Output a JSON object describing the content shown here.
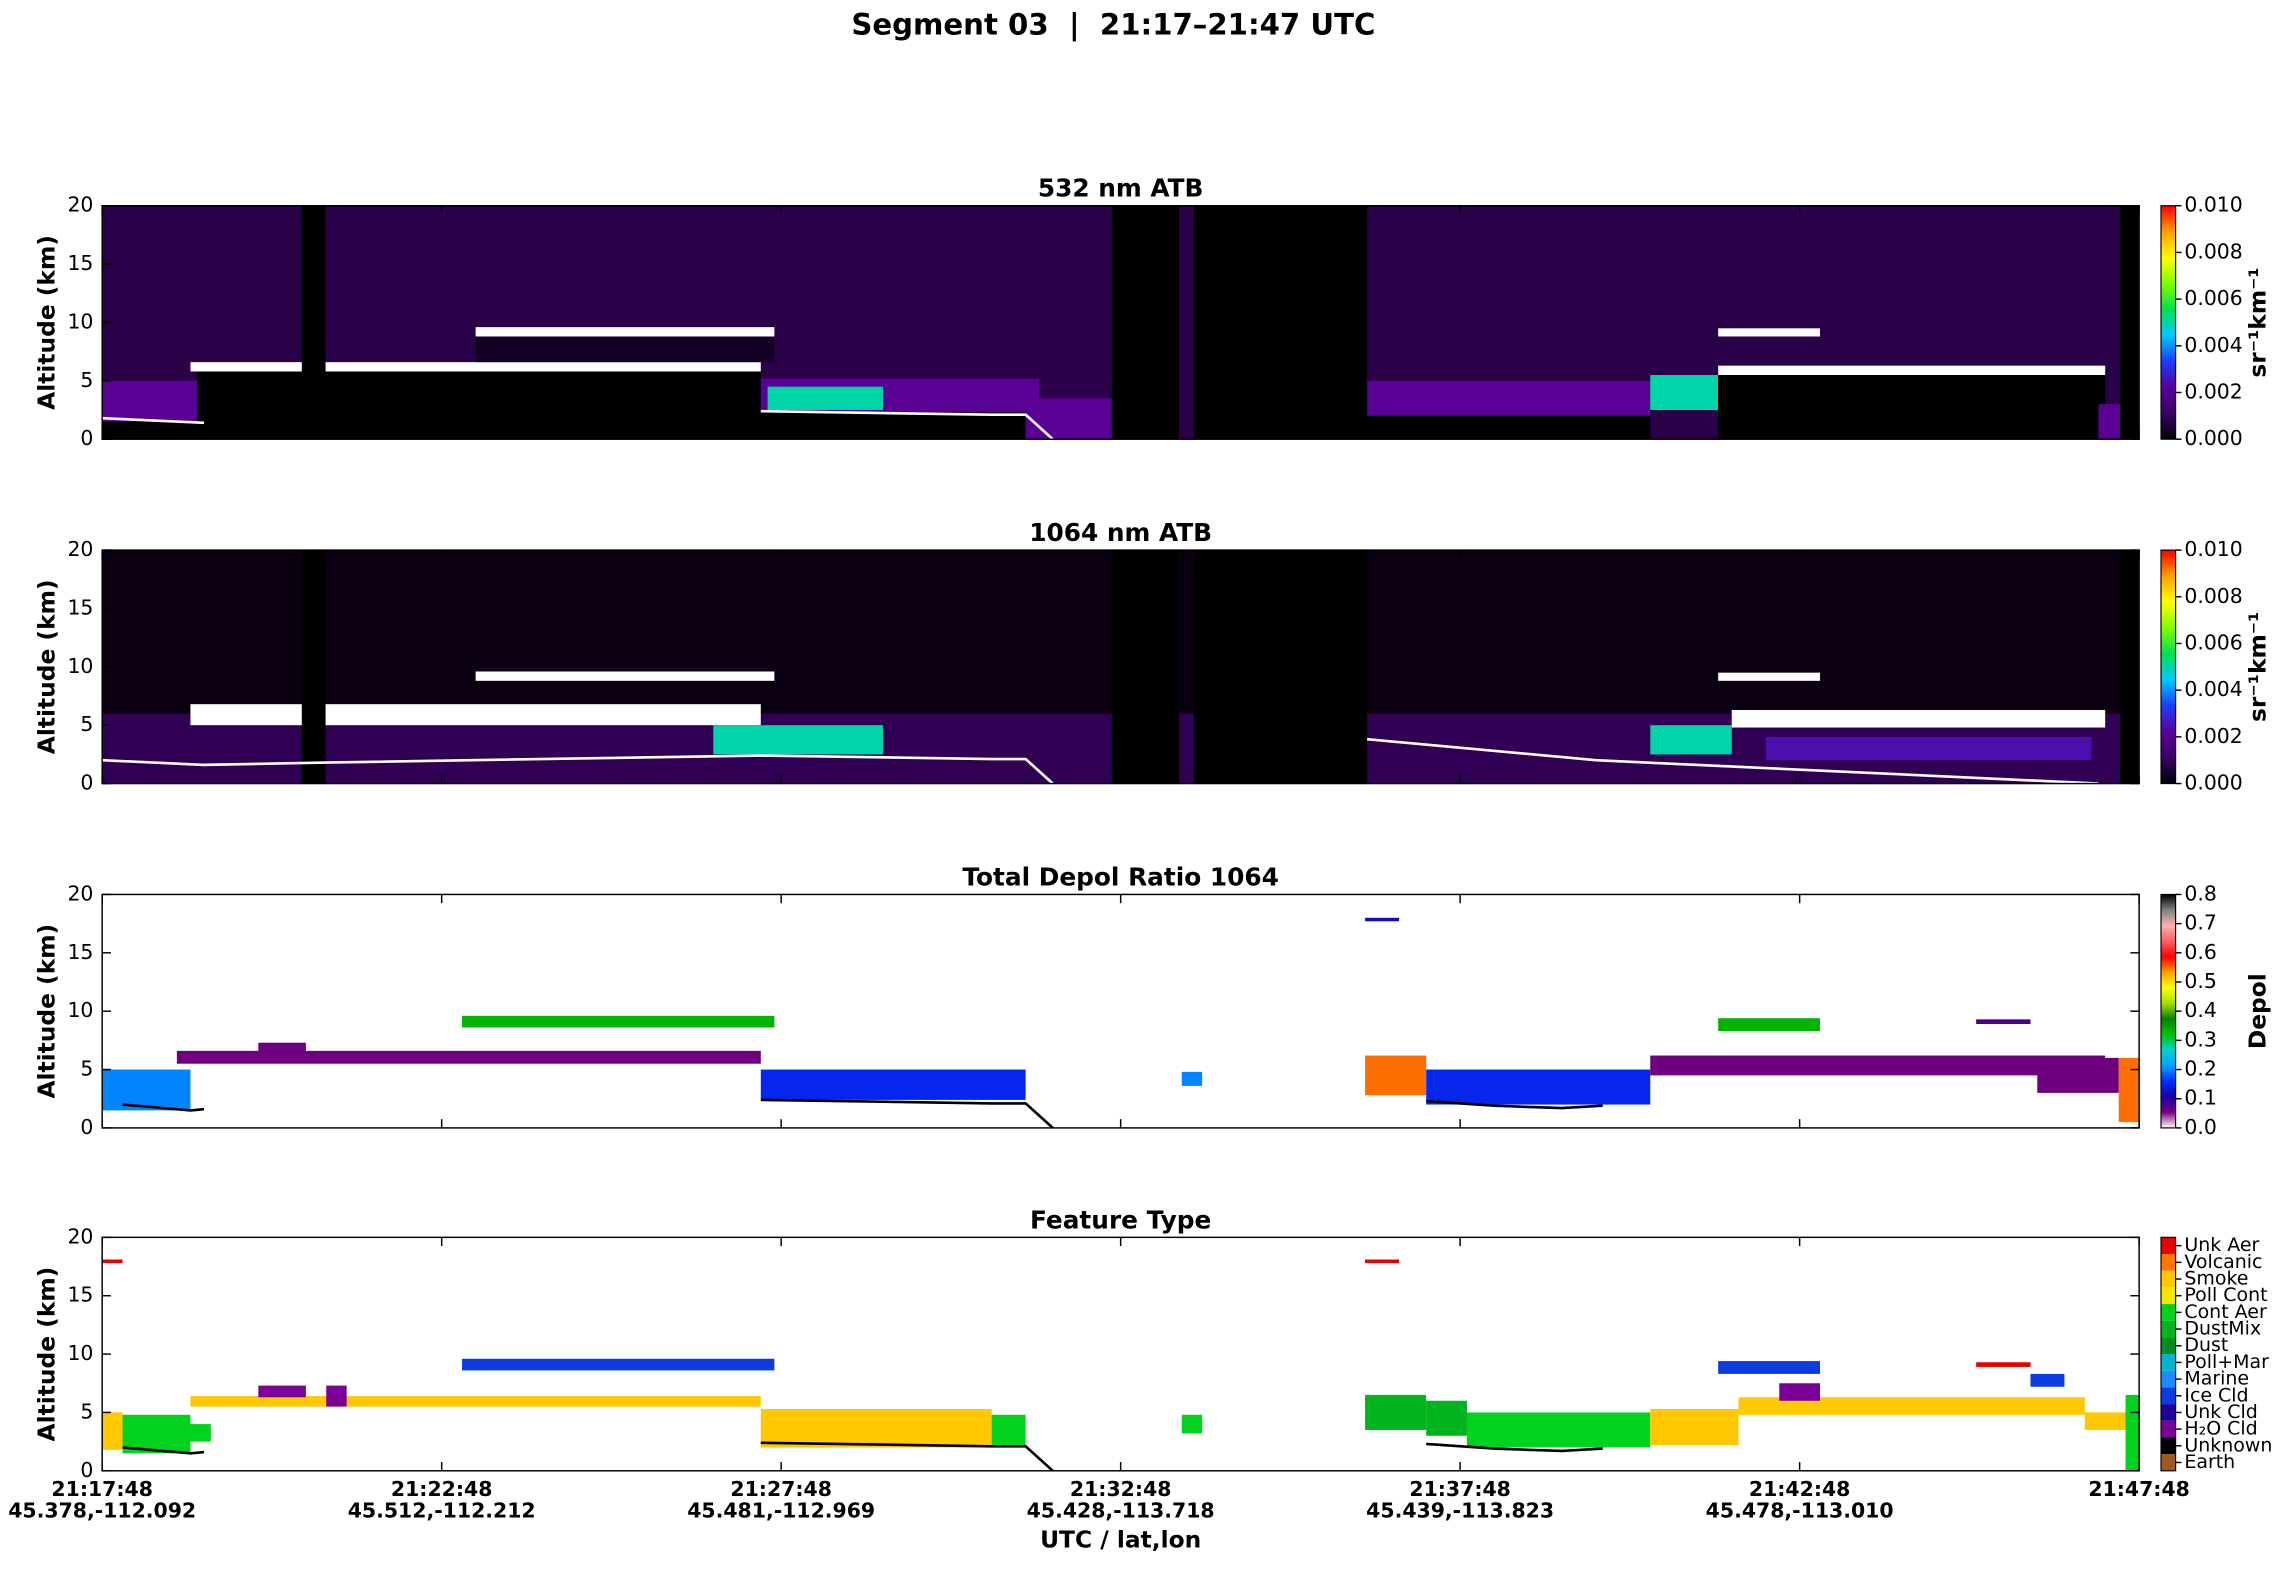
{
  "title": "Segment 03  |  21:17–21:47 UTC",
  "xlabel": "UTC / lat,lon",
  "xlim": [
    0,
    30
  ],
  "xticks": [
    {
      "value": 0,
      "label": "21:17:48"
    },
    {
      "value": 5,
      "label": "21:22:48"
    },
    {
      "value": 10,
      "label": "21:27:48"
    },
    {
      "value": 15,
      "label": "21:32:48"
    },
    {
      "value": 20,
      "label": "21:37:48"
    },
    {
      "value": 25,
      "label": "21:42:48"
    },
    {
      "value": 30,
      "label": "21:47:48"
    }
  ],
  "xtick_coords": [
    "45.378,-112.092",
    "45.512,-112.212",
    "45.481,-112.969",
    "45.428,-113.718",
    "45.439,-113.823",
    "45.478,-113.010",
    ""
  ],
  "chart_data": [
    {
      "type": "heatmap",
      "title": "532 nm ATB",
      "ylabel": "Altitude (km)",
      "ylim": [
        0,
        20
      ],
      "yticks": [
        0,
        5,
        10,
        15,
        20
      ],
      "colorbar": {
        "label": "sr⁻¹km⁻¹",
        "lim": [
          0,
          0.01
        ],
        "ticks": [
          {
            "value": 0,
            "label": "0.000"
          },
          {
            "value": 0.002,
            "label": "0.002"
          },
          {
            "value": 0.004,
            "label": "0.004"
          },
          {
            "value": 0.006,
            "label": "0.006"
          },
          {
            "value": 0.008,
            "label": "0.008"
          },
          {
            "value": 0.01,
            "label": "0.010"
          }
        ],
        "colormap": [
          "#000000",
          "#3a0066",
          "#5a0096",
          "#1e3cff",
          "#00c8ff",
          "#00e050",
          "#7fff00",
          "#ffff00",
          "#ffa000",
          "#ff0000"
        ],
        "over_color": "#ffffff"
      },
      "background": 0.0008,
      "layers": [
        {
          "x": [
            0,
            1.4
          ],
          "y": [
            1.5,
            5
          ],
          "value": 0.0022
        },
        {
          "x": [
            0,
            1.4
          ],
          "y": [
            0,
            1.5
          ],
          "value": 0
        },
        {
          "x": [
            1.4,
            9.7
          ],
          "y": [
            0,
            6
          ],
          "value": 0
        },
        {
          "x": [
            1.3,
            9.7
          ],
          "y": [
            5.8,
            6.6
          ],
          "value": 0.012
        },
        {
          "x": [
            5.5,
            9.9
          ],
          "y": [
            6.6,
            8.8
          ],
          "value": 0.0004
        },
        {
          "x": [
            5.5,
            9.9
          ],
          "y": [
            8.8,
            9.6
          ],
          "value": 0.012
        },
        {
          "x": [
            9.7,
            13.8
          ],
          "y": [
            2.2,
            5.2
          ],
          "value": 0.0022
        },
        {
          "x": [
            9.8,
            11.5
          ],
          "y": [
            2.5,
            4.5
          ],
          "value": 0.005
        },
        {
          "x": [
            9.7,
            13.6
          ],
          "y": [
            0,
            2.3
          ],
          "value": 0
        },
        {
          "x": [
            13.6,
            14.9
          ],
          "y": [
            0,
            3.5
          ],
          "value": 0.0022
        },
        {
          "x": [
            2.94,
            3.29
          ],
          "y": [
            0,
            20
          ],
          "value": 0
        },
        {
          "x": [
            14.87,
            15.86
          ],
          "y": [
            0,
            20
          ],
          "value": 0
        },
        {
          "x": [
            16.08,
            18.63
          ],
          "y": [
            0,
            20
          ],
          "value": 0
        },
        {
          "x": [
            18.63,
            22.8
          ],
          "y": [
            2,
            5
          ],
          "value": 0.0022
        },
        {
          "x": [
            18.63,
            22.8
          ],
          "y": [
            0,
            2
          ],
          "value": 0
        },
        {
          "x": [
            22.8,
            23.8
          ],
          "y": [
            2.5,
            5.5
          ],
          "value": 0.005
        },
        {
          "x": [
            23.8,
            29.5
          ],
          "y": [
            0,
            5.8
          ],
          "value": 0
        },
        {
          "x": [
            23.8,
            29.5
          ],
          "y": [
            5.5,
            6.3
          ],
          "value": 0.012
        },
        {
          "x": [
            23.8,
            25.3
          ],
          "y": [
            8.8,
            9.5
          ],
          "value": 0.012
        },
        {
          "x": [
            29.4,
            29.72
          ],
          "y": [
            0,
            3
          ],
          "value": 0.0022
        },
        {
          "x": [
            29.72,
            30
          ],
          "y": [
            0,
            20
          ],
          "value": 0
        }
      ],
      "surface": {
        "x": [
          0,
          1.5,
          null,
          9.7,
          13.1,
          13.6,
          14.0
        ],
        "y": [
          1.8,
          1.4,
          null,
          2.4,
          2.1,
          2.1,
          0
        ],
        "color": "#ffffff"
      }
    },
    {
      "type": "heatmap",
      "title": "1064 nm ATB",
      "ylabel": "Altitude (km)",
      "ylim": [
        0,
        20
      ],
      "yticks": [
        0,
        5,
        10,
        15,
        20
      ],
      "colorbar": {
        "label": "sr⁻¹km⁻¹",
        "lim": [
          0,
          0.01
        ],
        "ticks": [
          {
            "value": 0,
            "label": "0.000"
          },
          {
            "value": 0.002,
            "label": "0.002"
          },
          {
            "value": 0.004,
            "label": "0.004"
          },
          {
            "value": 0.006,
            "label": "0.006"
          },
          {
            "value": 0.008,
            "label": "0.008"
          },
          {
            "value": 0.01,
            "label": "0.010"
          }
        ],
        "colormap": [
          "#000000",
          "#3a0066",
          "#5a0096",
          "#1e3cff",
          "#00c8ff",
          "#00e050",
          "#7fff00",
          "#ffff00",
          "#ffa000",
          "#ff0000"
        ],
        "over_color": "#ffffff"
      },
      "background": 0.0002,
      "layers": [
        {
          "x": [
            0,
            30
          ],
          "y": [
            0,
            6
          ],
          "value": 0.0009
        },
        {
          "x": [
            1.3,
            9.7
          ],
          "y": [
            5.0,
            6.8
          ],
          "value": 0.012
        },
        {
          "x": [
            5.5,
            9.9
          ],
          "y": [
            8.8,
            9.6
          ],
          "value": 0.012
        },
        {
          "x": [
            9.0,
            11.5
          ],
          "y": [
            2.5,
            5.0
          ],
          "value": 0.005
        },
        {
          "x": [
            2.94,
            3.29
          ],
          "y": [
            0,
            20
          ],
          "value": 0
        },
        {
          "x": [
            14.87,
            15.86
          ],
          "y": [
            0,
            20
          ],
          "value": 0
        },
        {
          "x": [
            16.08,
            18.63
          ],
          "y": [
            0,
            20
          ],
          "value": 0
        },
        {
          "x": [
            22.8,
            24.0
          ],
          "y": [
            2.5,
            5.0
          ],
          "value": 0.005
        },
        {
          "x": [
            24.0,
            29.5
          ],
          "y": [
            4.8,
            6.3
          ],
          "value": 0.012
        },
        {
          "x": [
            24.5,
            29.3
          ],
          "y": [
            2.0,
            4.0
          ],
          "value": 0.0025
        },
        {
          "x": [
            23.8,
            25.3
          ],
          "y": [
            8.8,
            9.5
          ],
          "value": 0.012
        },
        {
          "x": [
            29.72,
            30
          ],
          "y": [
            0,
            20
          ],
          "value": 0
        }
      ],
      "surface": {
        "x": [
          0,
          1.5,
          3.3,
          9.7,
          13.1,
          13.6,
          14.0,
          null,
          18.63,
          22.0,
          29.4
        ],
        "y": [
          2.0,
          1.6,
          1.8,
          2.4,
          2.1,
          2.1,
          0,
          null,
          3.8,
          2.0,
          0
        ],
        "color": "#ffffff"
      }
    },
    {
      "type": "heatmap",
      "title": "Total Depol Ratio 1064",
      "ylabel": "Altitude (km)",
      "ylim": [
        0,
        20
      ],
      "yticks": [
        0,
        5,
        10,
        15,
        20
      ],
      "colorbar": {
        "label": "Depol",
        "lim": [
          0,
          0.8
        ],
        "ticks": [
          {
            "value": 0,
            "label": "0.0"
          },
          {
            "value": 0.1,
            "label": "0.1"
          },
          {
            "value": 0.2,
            "label": "0.2"
          },
          {
            "value": 0.3,
            "label": "0.3"
          },
          {
            "value": 0.4,
            "label": "0.4"
          },
          {
            "value": 0.5,
            "label": "0.5"
          },
          {
            "value": 0.6,
            "label": "0.6"
          },
          {
            "value": 0.7,
            "label": "0.7"
          },
          {
            "value": 0.8,
            "label": "0.8"
          }
        ],
        "colormap": [
          "#ffffff",
          "#7a007a",
          "#1a00a0",
          "#0030ff",
          "#00a0ff",
          "#00d0d0",
          "#00c000",
          "#008000",
          "#a0e000",
          "#ffff00",
          "#ffa000",
          "#ff0000",
          "#ff6060",
          "#ffb0b0",
          "#808080",
          "#000000"
        ],
        "over_color": "#000000"
      },
      "background": null,
      "layers": [
        {
          "x": [
            0,
            1.3
          ],
          "y": [
            1.5,
            5
          ],
          "value": 0.2
        },
        {
          "x": [
            1.1,
            9.7
          ],
          "y": [
            5.5,
            6.6
          ],
          "value": 0.06
        },
        {
          "x": [
            2.3,
            3.0
          ],
          "y": [
            6.3,
            7.3
          ],
          "value": 0.06
        },
        {
          "x": [
            5.3,
            9.9
          ],
          "y": [
            8.6,
            9.6
          ],
          "value": 0.33
        },
        {
          "x": [
            9.7,
            13.6
          ],
          "y": [
            2.4,
            5.0
          ],
          "value": 0.15
        },
        {
          "x": [
            15.9,
            16.2
          ],
          "y": [
            3.6,
            4.8
          ],
          "value": 0.2
        },
        {
          "x": [
            18.6,
            19.1
          ],
          "y": [
            17.7,
            18.0
          ],
          "value": 0.12
        },
        {
          "x": [
            18.6,
            19.5
          ],
          "y": [
            2.8,
            6.2
          ],
          "value": 0.55
        },
        {
          "x": [
            19.5,
            22.8
          ],
          "y": [
            2.0,
            5.0
          ],
          "value": 0.15
        },
        {
          "x": [
            22.8,
            29.5
          ],
          "y": [
            4.5,
            6.2
          ],
          "value": 0.06
        },
        {
          "x": [
            23.8,
            25.3
          ],
          "y": [
            8.3,
            9.4
          ],
          "value": 0.33
        },
        {
          "x": [
            27.6,
            28.4
          ],
          "y": [
            8.9,
            9.3
          ],
          "value": 0.08
        },
        {
          "x": [
            28.5,
            29.7
          ],
          "y": [
            3.0,
            6.0
          ],
          "value": 0.06
        },
        {
          "x": [
            29.7,
            30
          ],
          "y": [
            0.5,
            6.0
          ],
          "value": 0.55
        }
      ],
      "surface": {
        "x": [
          0.3,
          1.3,
          1.5,
          null,
          9.7,
          13.1,
          13.6,
          14.0,
          null,
          19.5,
          20.5,
          21.5,
          22.1
        ],
        "y": [
          2.0,
          1.5,
          1.6,
          null,
          2.4,
          2.1,
          2.1,
          0,
          null,
          2.3,
          1.9,
          1.7,
          1.9
        ],
        "color": "#000000"
      }
    },
    {
      "type": "categorical",
      "title": "Feature Type",
      "ylabel": "Altitude (km)",
      "ylim": [
        0,
        20
      ],
      "yticks": [
        0,
        5,
        10,
        15,
        20
      ],
      "classes": [
        {
          "name": "Earth",
          "color": "#a05a1e"
        },
        {
          "name": "Unknown",
          "color": "#000000"
        },
        {
          "name": "H₂O Cld",
          "color": "#7a0096"
        },
        {
          "name": "Unk Cld",
          "color": "#1e0096"
        },
        {
          "name": "Ice Cld",
          "color": "#0a3ce0"
        },
        {
          "name": "Marine",
          "color": "#1e8cff"
        },
        {
          "name": "Poll+Mar",
          "color": "#00b4d2"
        },
        {
          "name": "Dust",
          "color": "#008c1e"
        },
        {
          "name": "DustMix",
          "color": "#00b41e"
        },
        {
          "name": "Cont Aer",
          "color": "#00d21e"
        },
        {
          "name": "Poll Cont",
          "color": "#f0e600"
        },
        {
          "name": "Smoke",
          "color": "#ffc800"
        },
        {
          "name": "Volcanic",
          "color": "#ff7800"
        },
        {
          "name": "Unk Aer",
          "color": "#e60000"
        }
      ],
      "layers": [
        {
          "x": [
            0,
            0.3
          ],
          "y": [
            17.8,
            18.1
          ],
          "value": 13
        },
        {
          "x": [
            0,
            0.3
          ],
          "y": [
            1.8,
            5.0
          ],
          "value": 11
        },
        {
          "x": [
            0.3,
            1.3
          ],
          "y": [
            1.5,
            4.8
          ],
          "value": 9
        },
        {
          "x": [
            1.3,
            1.6
          ],
          "y": [
            2.5,
            4.0
          ],
          "value": 9
        },
        {
          "x": [
            1.3,
            9.7
          ],
          "y": [
            5.5,
            6.4
          ],
          "value": 11
        },
        {
          "x": [
            2.3,
            3.0
          ],
          "y": [
            6.3,
            7.3
          ],
          "value": 2
        },
        {
          "x": [
            3.3,
            3.6
          ],
          "y": [
            5.5,
            7.3
          ],
          "value": 2
        },
        {
          "x": [
            5.3,
            9.9
          ],
          "y": [
            8.6,
            9.6
          ],
          "value": 4
        },
        {
          "x": [
            9.7,
            13.1
          ],
          "y": [
            2.0,
            5.3
          ],
          "value": 11
        },
        {
          "x": [
            13.1,
            13.6
          ],
          "y": [
            2.2,
            4.8
          ],
          "value": 9
        },
        {
          "x": [
            15.9,
            16.2
          ],
          "y": [
            3.2,
            4.8
          ],
          "value": 9
        },
        {
          "x": [
            18.6,
            19.1
          ],
          "y": [
            17.8,
            18.1
          ],
          "value": 13
        },
        {
          "x": [
            18.6,
            19.5
          ],
          "y": [
            3.5,
            6.5
          ],
          "value": 8
        },
        {
          "x": [
            19.5,
            20.1
          ],
          "y": [
            3.0,
            6.0
          ],
          "value": 8
        },
        {
          "x": [
            20.1,
            22.8
          ],
          "y": [
            2.0,
            5.0
          ],
          "value": 9
        },
        {
          "x": [
            22.8,
            24.1
          ],
          "y": [
            2.2,
            5.3
          ],
          "value": 11
        },
        {
          "x": [
            24.1,
            29.2
          ],
          "y": [
            4.8,
            6.3
          ],
          "value": 11
        },
        {
          "x": [
            23.8,
            25.3
          ],
          "y": [
            8.3,
            9.4
          ],
          "value": 4
        },
        {
          "x": [
            24.7,
            25.3
          ],
          "y": [
            6.0,
            7.5
          ],
          "value": 2
        },
        {
          "x": [
            27.6,
            28.4
          ],
          "y": [
            8.9,
            9.3
          ],
          "value": 13
        },
        {
          "x": [
            28.4,
            28.9
          ],
          "y": [
            7.2,
            8.3
          ],
          "value": 4
        },
        {
          "x": [
            29.2,
            29.8
          ],
          "y": [
            3.5,
            5.0
          ],
          "value": 11
        },
        {
          "x": [
            29.8,
            30
          ],
          "y": [
            0,
            6.5
          ],
          "value": 9
        }
      ],
      "surface": {
        "x": [
          0.3,
          1.3,
          1.5,
          null,
          9.7,
          13.1,
          13.6,
          14.0,
          null,
          19.5,
          20.5,
          21.5,
          22.1
        ],
        "y": [
          2.0,
          1.5,
          1.6,
          null,
          2.4,
          2.1,
          2.1,
          0,
          null,
          2.3,
          1.9,
          1.7,
          1.9
        ],
        "color": "#000000"
      }
    }
  ]
}
